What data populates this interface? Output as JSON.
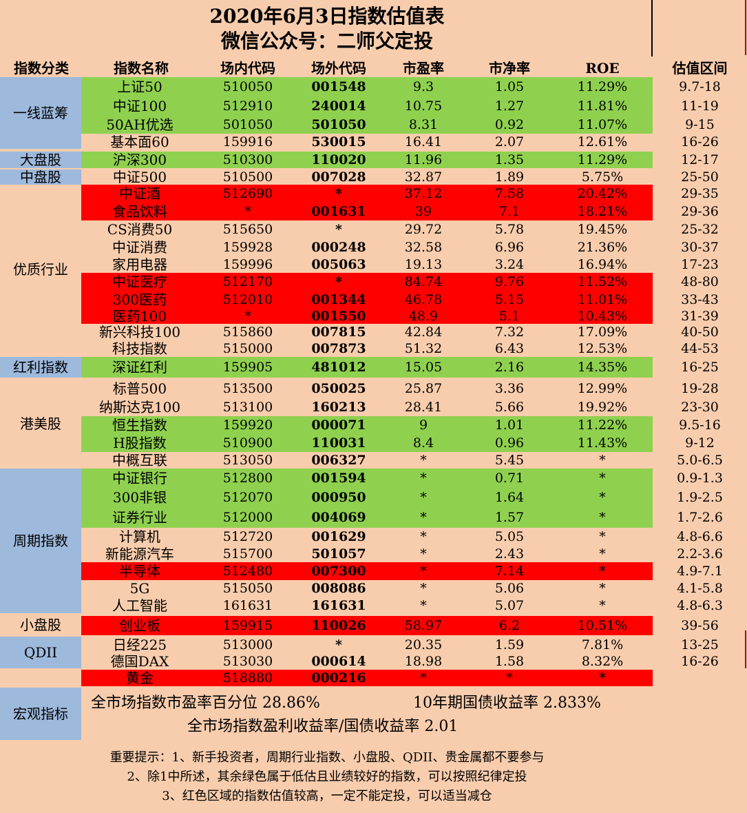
{
  "title_line1": "2020年6月3日指数估值表",
  "title_line2": "微信公众号：二师父定投",
  "headers": {
    "category": "指数分类",
    "name": "指数名称",
    "inner_code": "场内代码",
    "outer_code": "场外代码",
    "pe": "市盈率",
    "pb": "市净率",
    "roe": "ROE",
    "range": "估值区间"
  },
  "categories": {
    "bluechip": "一线蓝筹",
    "large": "大盘股",
    "mid": "中盘股",
    "quality": "优质行业",
    "dividend": "红利指数",
    "hkus": "港美股",
    "cyclical": "周期指数",
    "small": "小盘股",
    "qdii": "QDII",
    "macro": "宏观指标"
  },
  "rows": [
    {
      "name": "上证50",
      "inner": "510050",
      "outer": "001548",
      "pe": "9.3",
      "pb": "1.05",
      "roe": "11.29%",
      "range": "9.7-18",
      "band": "green"
    },
    {
      "name": "中证100",
      "inner": "512910",
      "outer": "240014",
      "pe": "10.75",
      "pb": "1.27",
      "roe": "11.81%",
      "range": "11-19",
      "band": "green"
    },
    {
      "name": "50AH优选",
      "inner": "501050",
      "outer": "501050",
      "pe": "8.31",
      "pb": "0.92",
      "roe": "11.07%",
      "range": "9-15",
      "band": "green"
    },
    {
      "name": "基本面60",
      "inner": "159916",
      "outer": "530015",
      "pe": "16.41",
      "pb": "2.07",
      "roe": "12.61%",
      "range": "16-26",
      "band": "none"
    },
    {
      "name": "沪深300",
      "inner": "510300",
      "outer": "110020",
      "pe": "11.96",
      "pb": "1.35",
      "roe": "11.29%",
      "range": "12-17",
      "band": "green"
    },
    {
      "name": "中证500",
      "inner": "510500",
      "outer": "007028",
      "pe": "32.87",
      "pb": "1.89",
      "roe": "5.75%",
      "range": "25-50",
      "band": "none"
    },
    {
      "name": "中证酒",
      "inner": "512690",
      "outer": "*",
      "pe": "37.12",
      "pb": "7.58",
      "roe": "20.42%",
      "range": "29-35",
      "band": "red"
    },
    {
      "name": "食品饮料",
      "inner": "*",
      "outer": "001631",
      "pe": "39",
      "pb": "7.1",
      "roe": "18.21%",
      "range": "29-36",
      "band": "red"
    },
    {
      "name": "CS消费50",
      "inner": "515650",
      "outer": "*",
      "pe": "29.72",
      "pb": "5.78",
      "roe": "19.45%",
      "range": "25-32",
      "band": "none"
    },
    {
      "name": "中证消费",
      "inner": "159928",
      "outer": "000248",
      "pe": "32.58",
      "pb": "6.96",
      "roe": "21.36%",
      "range": "30-37",
      "band": "none"
    },
    {
      "name": "家用电器",
      "inner": "159996",
      "outer": "005063",
      "pe": "19.13",
      "pb": "3.24",
      "roe": "16.94%",
      "range": "17-23",
      "band": "none"
    },
    {
      "name": "中证医疗",
      "inner": "512170",
      "outer": "*",
      "pe": "84.74",
      "pb": "9.76",
      "roe": "11.52%",
      "range": "48-80",
      "band": "red"
    },
    {
      "name": "300医药",
      "inner": "512010",
      "outer": "001344",
      "pe": "46.78",
      "pb": "5.15",
      "roe": "11.01%",
      "range": "33-43",
      "band": "red"
    },
    {
      "name": "医药100",
      "inner": "*",
      "outer": "001550",
      "pe": "48.9",
      "pb": "5.1",
      "roe": "10.43%",
      "range": "31-39",
      "band": "red"
    },
    {
      "name": "新兴科技100",
      "inner": "515860",
      "outer": "007815",
      "pe": "42.84",
      "pb": "7.32",
      "roe": "17.09%",
      "range": "40-50",
      "band": "none"
    },
    {
      "name": "科技指数",
      "inner": "515000",
      "outer": "007873",
      "pe": "51.32",
      "pb": "6.43",
      "roe": "12.53%",
      "range": "44-53",
      "band": "none"
    },
    {
      "name": "深证红利",
      "inner": "159905",
      "outer": "481012",
      "pe": "15.05",
      "pb": "2.16",
      "roe": "14.35%",
      "range": "16-25",
      "band": "green"
    },
    {
      "name": "标普500",
      "inner": "513500",
      "outer": "050025",
      "pe": "25.87",
      "pb": "3.36",
      "roe": "12.99%",
      "range": "19-28",
      "band": "none"
    },
    {
      "name": "纳斯达克100",
      "inner": "513100",
      "outer": "160213",
      "pe": "28.41",
      "pb": "5.66",
      "roe": "19.92%",
      "range": "23-30",
      "band": "none"
    },
    {
      "name": "恒生指数",
      "inner": "159920",
      "outer": "000071",
      "pe": "9",
      "pb": "1.01",
      "roe": "11.22%",
      "range": "9.5-16",
      "band": "green"
    },
    {
      "name": "H股指数",
      "inner": "510900",
      "outer": "110031",
      "pe": "8.4",
      "pb": "0.96",
      "roe": "11.43%",
      "range": "9-12",
      "band": "green"
    },
    {
      "name": "中概互联",
      "inner": "513050",
      "outer": "006327",
      "pe": "*",
      "pb": "5.45",
      "roe": "*",
      "range": "5.0-6.5",
      "band": "none"
    },
    {
      "name": "中证银行",
      "inner": "512800",
      "outer": "001594",
      "pe": "*",
      "pb": "0.71",
      "roe": "*",
      "range": "0.9-1.3",
      "band": "green"
    },
    {
      "name": "300非银",
      "inner": "512070",
      "outer": "000950",
      "pe": "*",
      "pb": "1.64",
      "roe": "*",
      "range": "1.9-2.5",
      "band": "green"
    },
    {
      "name": "证券行业",
      "inner": "512000",
      "outer": "004069",
      "pe": "*",
      "pb": "1.57",
      "roe": "*",
      "range": "1.7-2.6",
      "band": "green"
    },
    {
      "name": "计算机",
      "inner": "512720",
      "outer": "001629",
      "pe": "*",
      "pb": "5.05",
      "roe": "*",
      "range": "4.8-6.6",
      "band": "none"
    },
    {
      "name": "新能源汽车",
      "inner": "515700",
      "outer": "501057",
      "pe": "*",
      "pb": "2.43",
      "roe": "*",
      "range": "2.2-3.6",
      "band": "none"
    },
    {
      "name": "半导体",
      "inner": "512480",
      "outer": "007300",
      "pe": "*",
      "pb": "7.14",
      "roe": "*",
      "range": "4.9-7.1",
      "band": "red"
    },
    {
      "name": "5G",
      "inner": "515050",
      "outer": "008086",
      "pe": "*",
      "pb": "5.06",
      "roe": "*",
      "range": "4.1-5.8",
      "band": "none"
    },
    {
      "name": "人工智能",
      "inner": "161631",
      "outer": "161631",
      "pe": "*",
      "pb": "5.07",
      "roe": "*",
      "range": "4.8-6.3",
      "band": "none"
    },
    {
      "name": "创业板",
      "inner": "159915",
      "outer": "110026",
      "pe": "58.97",
      "pb": "6.2",
      "roe": "10.51%",
      "range": "39-56",
      "band": "red"
    },
    {
      "name": "日经225",
      "inner": "513000",
      "outer": "*",
      "pe": "20.35",
      "pb": "1.59",
      "roe": "7.81%",
      "range": "13-25",
      "band": "none"
    },
    {
      "name": "德国DAX",
      "inner": "513030",
      "outer": "000614",
      "pe": "18.98",
      "pb": "1.58",
      "roe": "8.32%",
      "range": "16-26",
      "band": "none"
    },
    {
      "name": "黄金",
      "inner": "518880",
      "outer": "000216",
      "pe": "*",
      "pb": "*",
      "roe": "*",
      "range": "",
      "band": "red"
    }
  ],
  "macro": {
    "line1a": "全市场指数市盈率百分位 28.86%",
    "line1b": "10年期国债收益率 2.833%",
    "line2": "全市场指数盈利收益率/国债收益率 2.01"
  },
  "notes": {
    "n1": "重要提示：1、新手投资者，周期行业指数、小盘股、QDII、贵金属都不要参与",
    "n2": "2、除1中所述，其余绿色属于低估且业绩较好的指数，可以按照纪律定投",
    "n3": "3、红色区域的指数估值较高，一定不能定投，可以适当减仓"
  },
  "colors": {
    "green": "#8fd14f",
    "red": "#ff0000",
    "blue": "#9db9dc",
    "background": "#f8cdad"
  }
}
